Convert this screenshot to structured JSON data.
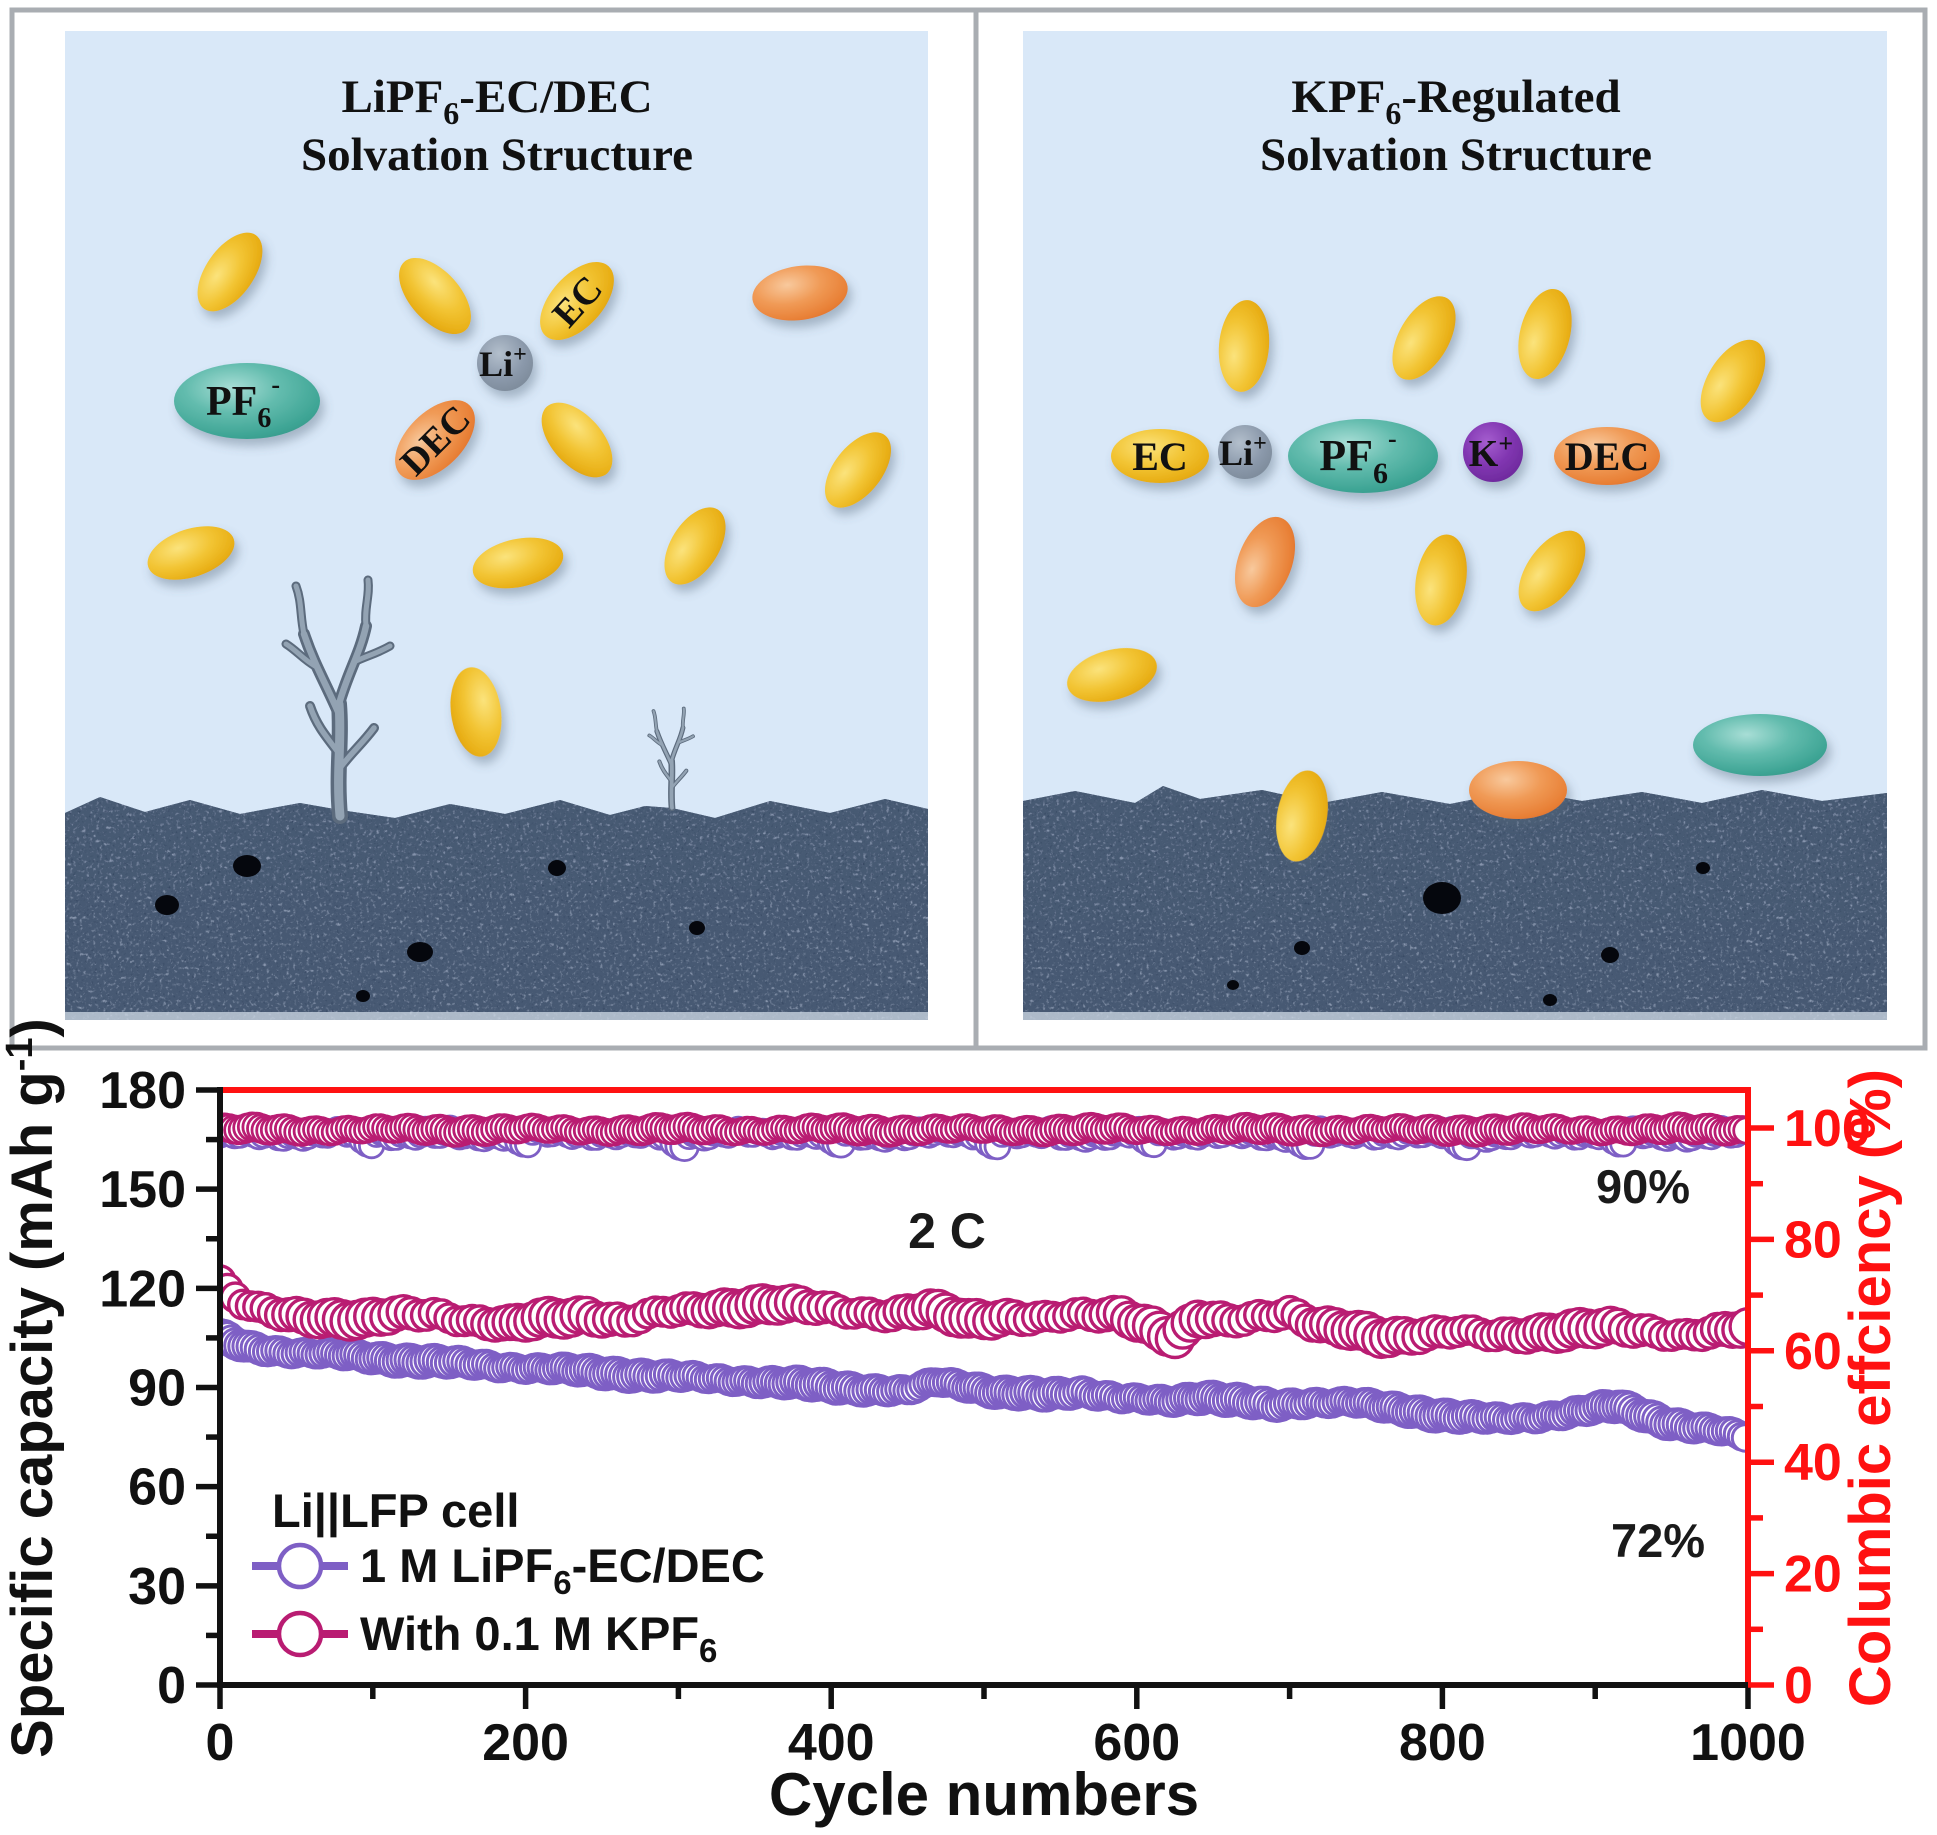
{
  "figure": {
    "panels": {
      "left": {
        "title_line1_main": "LiPF",
        "title_line1_sub": "6",
        "title_line1_end": "-EC/DEC",
        "title_line2": "Solvation Structure",
        "molecules": {
          "pf6_main": "PF",
          "pf6_sub": "6",
          "pf6_sup": "-",
          "dec": "DEC",
          "li_main": "Li",
          "li_sup": "+",
          "ec": "EC"
        }
      },
      "right": {
        "title_line1_main": "KPF",
        "title_line1_sub": "6",
        "title_line1_end": "-Regulated",
        "title_line2": "Solvation Structure",
        "molecules": {
          "ec": "EC",
          "li_main": "Li",
          "li_sup": "+",
          "pf6_main": "PF",
          "pf6_sub": "6",
          "pf6_sup": "-",
          "k_main": "K",
          "k_sup": "+",
          "dec": "DEC"
        }
      }
    }
  },
  "chart": {
    "axes": {
      "x": {
        "title": "Cycle numbers",
        "ticks": [
          "0",
          "200",
          "400",
          "600",
          "800",
          "1000"
        ]
      },
      "y_left": {
        "title_main": "Specific capacity (mAh g",
        "title_sup": "-1",
        "title_end": ")",
        "ticks": [
          "0",
          "30",
          "60",
          "90",
          "120",
          "150",
          "180"
        ]
      },
      "y_right": {
        "title": "Columbic effciency (%)",
        "ticks": [
          "0",
          "20",
          "40",
          "60",
          "80",
          "100"
        ]
      }
    },
    "legend": {
      "header": "Li||LFP cell",
      "entries": [
        {
          "label_main": "1 M LiPF",
          "label_sub": "6",
          "label_end": "-EC/DEC",
          "color": "#7e5fc5"
        },
        {
          "label_main": "With 0.1 M KPF",
          "label_sub": "6",
          "label_end": "",
          "color": "#b91c72"
        }
      ]
    },
    "annotations": {
      "rate": "2 C",
      "retention_kpf6": "90%",
      "retention_lipf6": "72%"
    },
    "colors": {
      "purple": "#7e5fc5",
      "magenta": "#b91c72",
      "red": "#ff1111",
      "axis_black": "#111111"
    }
  },
  "chart_data": {
    "type": "scatter",
    "xlabel": "Cycle numbers",
    "ylabel_left": "Specific capacity (mAh g-1)",
    "ylabel_right": "Columbic effciency (%)",
    "xlim": [
      0,
      1000
    ],
    "ylim_left": [
      0,
      180
    ],
    "ylim_right": [
      0,
      107
    ],
    "x_major_ticks": [
      0,
      200,
      400,
      600,
      800,
      1000
    ],
    "y_left_major_ticks": [
      0,
      30,
      60,
      90,
      120,
      150,
      180
    ],
    "y_right_major_ticks": [
      0,
      20,
      40,
      60,
      80,
      100
    ],
    "annotations": [
      {
        "text": "2 C",
        "x": 476,
        "y_left": 133
      },
      {
        "text": "90%",
        "x": 931,
        "y_left": 147
      },
      {
        "text": "72%",
        "x": 941,
        "y_left": 40
      }
    ],
    "series": [
      {
        "name": "1 M LiPF6-EC/DEC - specific capacity",
        "yaxis": "left",
        "color": "#7e5fc5",
        "marker": "open-circle",
        "points": [
          [
            0,
            105.5
          ],
          [
            8,
            103.5
          ],
          [
            20,
            102
          ],
          [
            40,
            101
          ],
          [
            70,
            100
          ],
          [
            100,
            99
          ],
          [
            140,
            97.8
          ],
          [
            180,
            96.5
          ],
          [
            220,
            95.5
          ],
          [
            260,
            94.2
          ],
          [
            300,
            93.2
          ],
          [
            340,
            92.2
          ],
          [
            380,
            91
          ],
          [
            420,
            89.6
          ],
          [
            450,
            88.8
          ],
          [
            470,
            91.8
          ],
          [
            490,
            90.5
          ],
          [
            510,
            88.5
          ],
          [
            540,
            87.6
          ],
          [
            565,
            88.8
          ],
          [
            590,
            86.8
          ],
          [
            620,
            85.6
          ],
          [
            645,
            87.4
          ],
          [
            665,
            86.2
          ],
          [
            690,
            84.2
          ],
          [
            715,
            85.6
          ],
          [
            740,
            85.8
          ],
          [
            765,
            83.6
          ],
          [
            790,
            82.2
          ],
          [
            815,
            81.2
          ],
          [
            840,
            80.2
          ],
          [
            860,
            80.8
          ],
          [
            880,
            82.2
          ],
          [
            900,
            83.6
          ],
          [
            915,
            84.2
          ],
          [
            930,
            82
          ],
          [
            945,
            79.8
          ],
          [
            960,
            78.4
          ],
          [
            980,
            77
          ],
          [
            1000,
            74.8
          ]
        ]
      },
      {
        "name": "With 0.1 M KPF6 - specific capacity",
        "yaxis": "left",
        "color": "#b91c72",
        "marker": "open-circle",
        "points": [
          [
            0,
            122
          ],
          [
            6,
            118.5
          ],
          [
            14,
            115.5
          ],
          [
            25,
            113.5
          ],
          [
            45,
            112
          ],
          [
            70,
            111.2
          ],
          [
            95,
            110.4
          ],
          [
            115,
            111.8
          ],
          [
            140,
            112.4
          ],
          [
            165,
            110.2
          ],
          [
            190,
            108.8
          ],
          [
            215,
            110.8
          ],
          [
            240,
            112
          ],
          [
            265,
            110
          ],
          [
            290,
            112.6
          ],
          [
            315,
            113.8
          ],
          [
            340,
            114.6
          ],
          [
            365,
            115
          ],
          [
            390,
            114.2
          ],
          [
            415,
            113
          ],
          [
            440,
            112
          ],
          [
            465,
            113.4
          ],
          [
            490,
            110.6
          ],
          [
            515,
            111.4
          ],
          [
            540,
            110.8
          ],
          [
            565,
            111.8
          ],
          [
            590,
            112.4
          ],
          [
            612,
            108
          ],
          [
            625,
            104.8
          ],
          [
            640,
            110.6
          ],
          [
            660,
            110
          ],
          [
            680,
            111.8
          ],
          [
            700,
            112.8
          ],
          [
            718,
            108.6
          ],
          [
            740,
            107.2
          ],
          [
            762,
            105.4
          ],
          [
            785,
            106.2
          ],
          [
            810,
            106.8
          ],
          [
            835,
            105.6
          ],
          [
            860,
            106.6
          ],
          [
            885,
            107.4
          ],
          [
            910,
            108
          ],
          [
            935,
            107
          ],
          [
            958,
            106
          ],
          [
            980,
            106.8
          ],
          [
            1000,
            107.8
          ]
        ]
      },
      {
        "name": "1 M LiPF6-EC/DEC - coulombic efficiency",
        "yaxis": "right",
        "color": "#7e5fc5",
        "marker": "open-circle",
        "points": [
          [
            0,
            99.0
          ],
          [
            250,
            99.0
          ],
          [
            500,
            99.0
          ],
          [
            750,
            99.0
          ],
          [
            1000,
            99.0
          ]
        ]
      },
      {
        "name": "With 0.1 M KPF6 - coulombic efficiency",
        "yaxis": "right",
        "color": "#b91c72",
        "marker": "open-circle",
        "points": [
          [
            0,
            99.7
          ],
          [
            250,
            99.7
          ],
          [
            500,
            99.7
          ],
          [
            750,
            99.7
          ],
          [
            1000,
            99.7
          ]
        ]
      }
    ]
  }
}
